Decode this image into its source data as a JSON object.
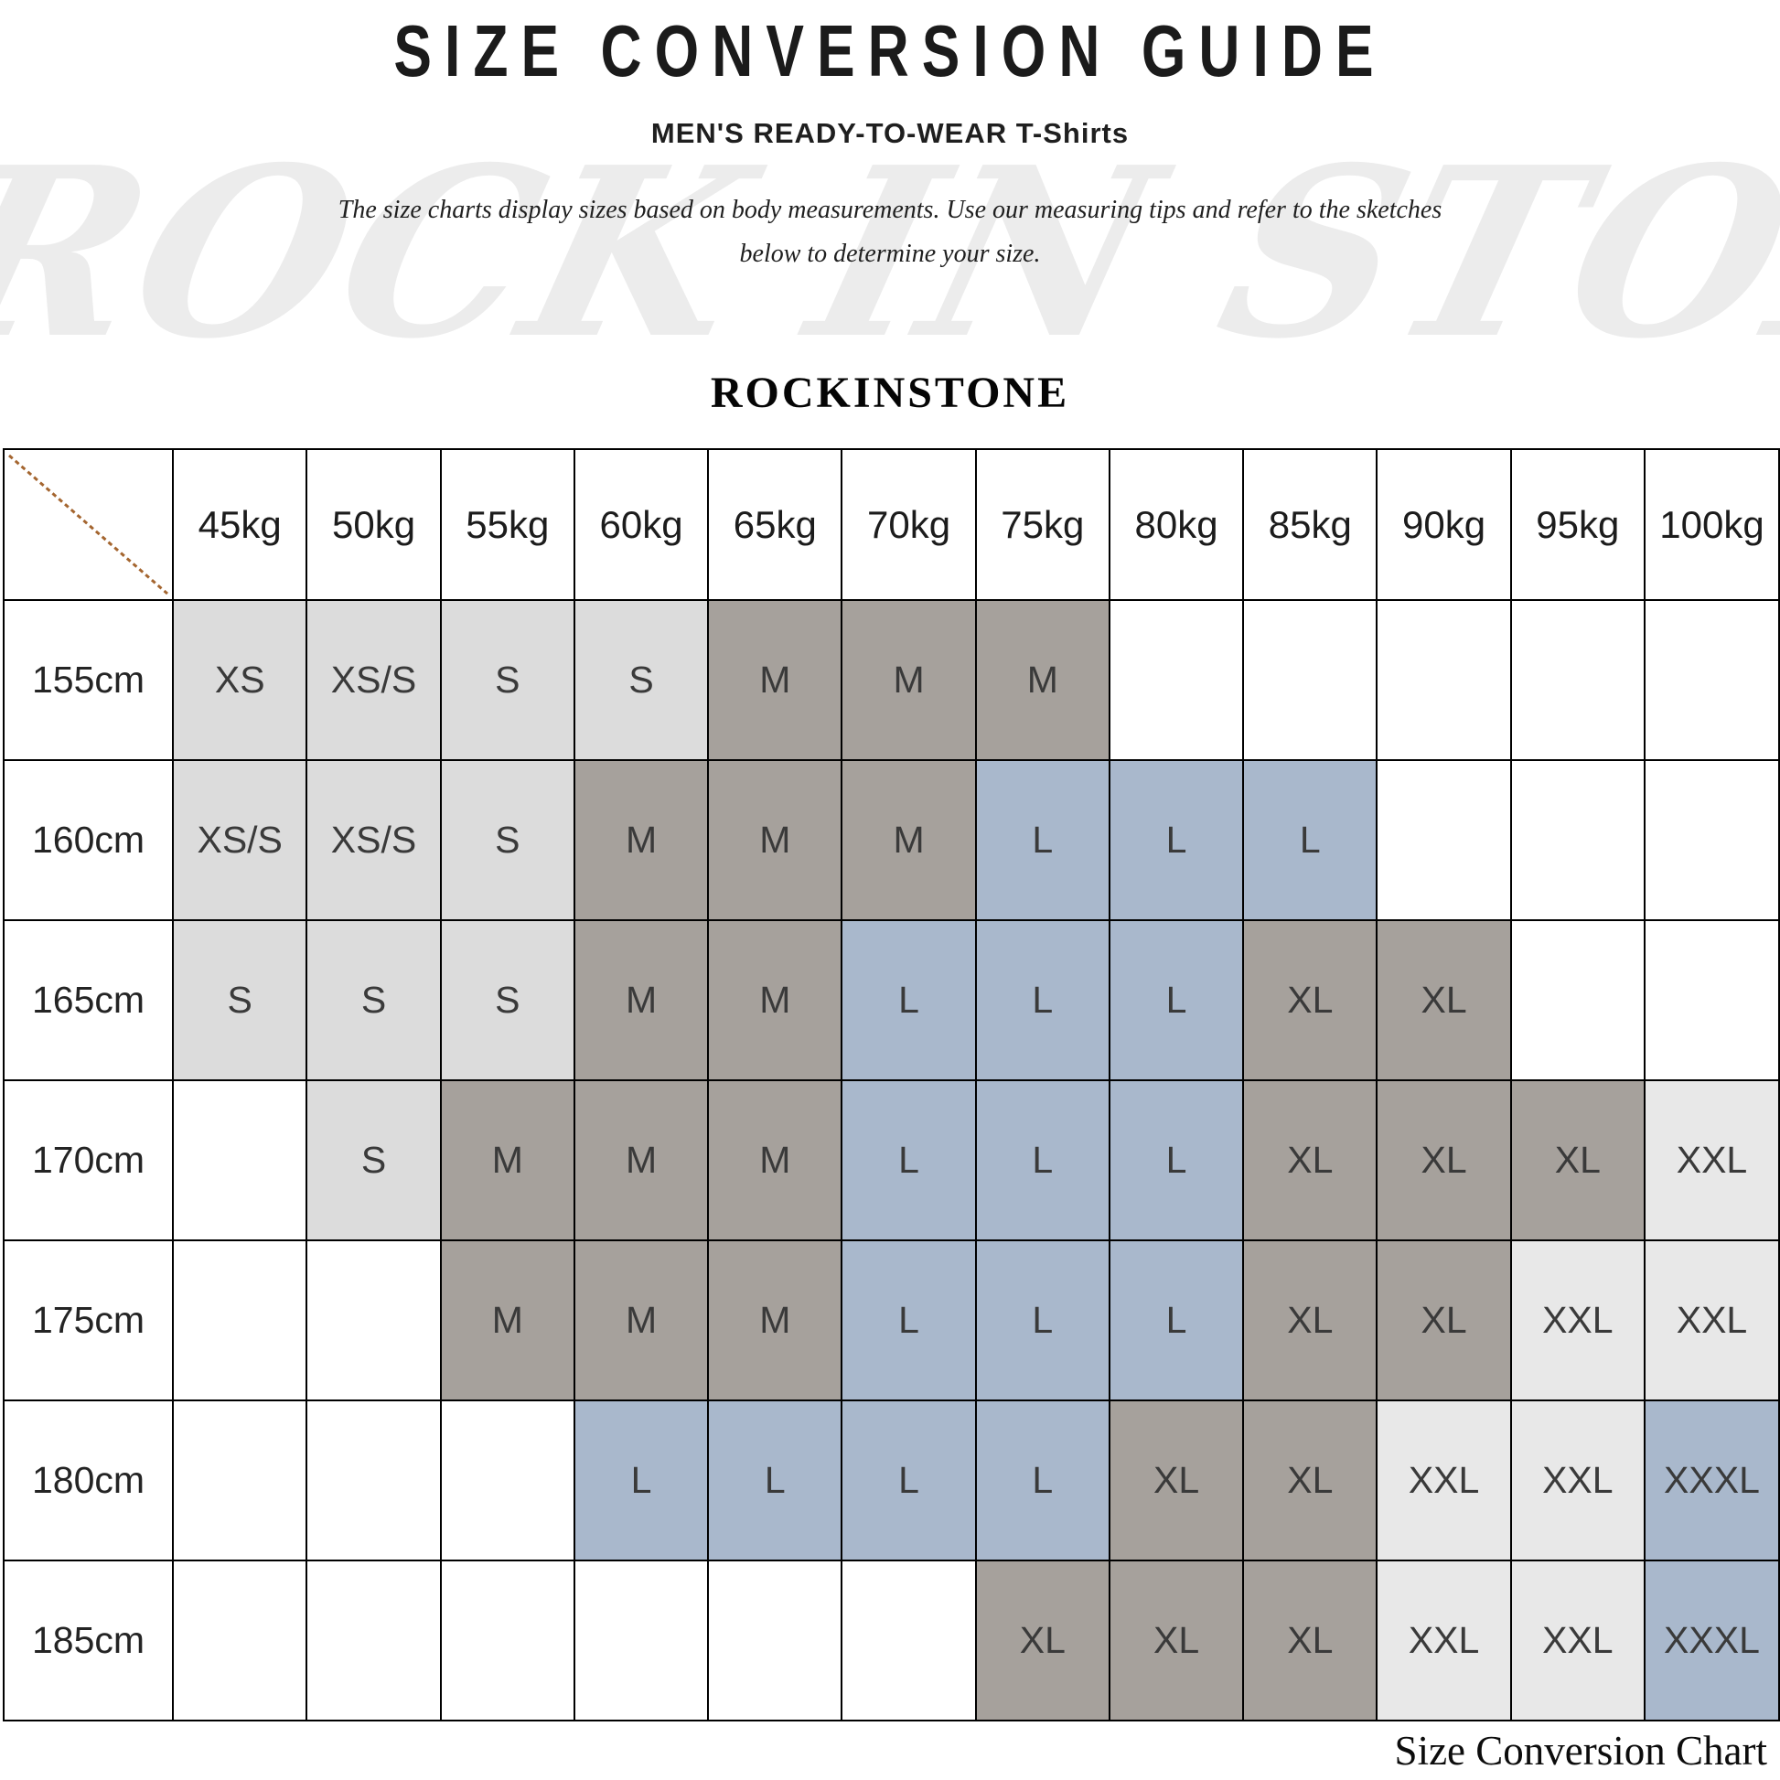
{
  "header": {
    "title": "SIZE CONVERSION GUIDE",
    "subtitle": "MEN'S READY-TO-WEAR T-Shirts",
    "description_line1": "The size charts display sizes based on body measurements.  Use our measuring tips and refer to the sketches",
    "description_line2": "below to determine your size.",
    "brand": "ROCKINSTONE",
    "watermark": "ROCK IN STONE"
  },
  "footer": {
    "caption": "Size Conversion Chart"
  },
  "colors": {
    "light_gray": "#dcdcdc",
    "taupe_gray": "#a6a19c",
    "blue_gray": "#a9b8cc",
    "pale_gray": "#e8e8e8",
    "white": "#ffffff",
    "diagonal_line": "#a4652f",
    "border": "#000000",
    "watermark_gray": "#ececec"
  },
  "chart_data": {
    "type": "table",
    "title": "SIZE CONVERSION GUIDE",
    "corner_label": "",
    "columns": [
      "45kg",
      "50kg",
      "55kg",
      "60kg",
      "65kg",
      "70kg",
      "75kg",
      "80kg",
      "85kg",
      "90kg",
      "95kg",
      "100kg"
    ],
    "rows": [
      {
        "label": "155cm",
        "cells": [
          {
            "v": "XS",
            "tone": "light_gray"
          },
          {
            "v": "XS/S",
            "tone": "light_gray"
          },
          {
            "v": "S",
            "tone": "light_gray"
          },
          {
            "v": "S",
            "tone": "light_gray"
          },
          {
            "v": "M",
            "tone": "taupe_gray"
          },
          {
            "v": "M",
            "tone": "taupe_gray"
          },
          {
            "v": "M",
            "tone": "taupe_gray"
          },
          {
            "v": "",
            "tone": ""
          },
          {
            "v": "",
            "tone": ""
          },
          {
            "v": "",
            "tone": ""
          },
          {
            "v": "",
            "tone": ""
          },
          {
            "v": "",
            "tone": ""
          }
        ]
      },
      {
        "label": "160cm",
        "cells": [
          {
            "v": "XS/S",
            "tone": "light_gray"
          },
          {
            "v": "XS/S",
            "tone": "light_gray"
          },
          {
            "v": "S",
            "tone": "light_gray"
          },
          {
            "v": "M",
            "tone": "taupe_gray"
          },
          {
            "v": "M",
            "tone": "taupe_gray"
          },
          {
            "v": "M",
            "tone": "taupe_gray"
          },
          {
            "v": "L",
            "tone": "blue_gray"
          },
          {
            "v": "L",
            "tone": "blue_gray"
          },
          {
            "v": "L",
            "tone": "blue_gray"
          },
          {
            "v": "",
            "tone": ""
          },
          {
            "v": "",
            "tone": ""
          },
          {
            "v": "",
            "tone": ""
          }
        ]
      },
      {
        "label": "165cm",
        "cells": [
          {
            "v": "S",
            "tone": "light_gray"
          },
          {
            "v": "S",
            "tone": "light_gray"
          },
          {
            "v": "S",
            "tone": "light_gray"
          },
          {
            "v": "M",
            "tone": "taupe_gray"
          },
          {
            "v": "M",
            "tone": "taupe_gray"
          },
          {
            "v": "L",
            "tone": "blue_gray"
          },
          {
            "v": "L",
            "tone": "blue_gray"
          },
          {
            "v": "L",
            "tone": "blue_gray"
          },
          {
            "v": "XL",
            "tone": "taupe_gray"
          },
          {
            "v": "XL",
            "tone": "taupe_gray"
          },
          {
            "v": "",
            "tone": ""
          },
          {
            "v": "",
            "tone": ""
          }
        ]
      },
      {
        "label": "170cm",
        "cells": [
          {
            "v": "",
            "tone": ""
          },
          {
            "v": "S",
            "tone": "light_gray"
          },
          {
            "v": "M",
            "tone": "taupe_gray"
          },
          {
            "v": "M",
            "tone": "taupe_gray"
          },
          {
            "v": "M",
            "tone": "taupe_gray"
          },
          {
            "v": "L",
            "tone": "blue_gray"
          },
          {
            "v": "L",
            "tone": "blue_gray"
          },
          {
            "v": "L",
            "tone": "blue_gray"
          },
          {
            "v": "XL",
            "tone": "taupe_gray"
          },
          {
            "v": "XL",
            "tone": "taupe_gray"
          },
          {
            "v": "XL",
            "tone": "taupe_gray"
          },
          {
            "v": "XXL",
            "tone": "pale_gray"
          }
        ]
      },
      {
        "label": "175cm",
        "cells": [
          {
            "v": "",
            "tone": ""
          },
          {
            "v": "",
            "tone": ""
          },
          {
            "v": "M",
            "tone": "taupe_gray"
          },
          {
            "v": "M",
            "tone": "taupe_gray"
          },
          {
            "v": "M",
            "tone": "taupe_gray"
          },
          {
            "v": "L",
            "tone": "blue_gray"
          },
          {
            "v": "L",
            "tone": "blue_gray"
          },
          {
            "v": "L",
            "tone": "blue_gray"
          },
          {
            "v": "XL",
            "tone": "taupe_gray"
          },
          {
            "v": "XL",
            "tone": "taupe_gray"
          },
          {
            "v": "XXL",
            "tone": "pale_gray"
          },
          {
            "v": "XXL",
            "tone": "pale_gray"
          }
        ]
      },
      {
        "label": "180cm",
        "cells": [
          {
            "v": "",
            "tone": ""
          },
          {
            "v": "",
            "tone": ""
          },
          {
            "v": "",
            "tone": ""
          },
          {
            "v": "L",
            "tone": "blue_gray"
          },
          {
            "v": "L",
            "tone": "blue_gray"
          },
          {
            "v": "L",
            "tone": "blue_gray"
          },
          {
            "v": "L",
            "tone": "blue_gray"
          },
          {
            "v": "XL",
            "tone": "taupe_gray"
          },
          {
            "v": "XL",
            "tone": "taupe_gray"
          },
          {
            "v": "XXL",
            "tone": "pale_gray"
          },
          {
            "v": "XXL",
            "tone": "pale_gray"
          },
          {
            "v": "XXXL",
            "tone": "blue_gray"
          }
        ]
      },
      {
        "label": "185cm",
        "cells": [
          {
            "v": "",
            "tone": ""
          },
          {
            "v": "",
            "tone": ""
          },
          {
            "v": "",
            "tone": ""
          },
          {
            "v": "",
            "tone": ""
          },
          {
            "v": "",
            "tone": ""
          },
          {
            "v": "",
            "tone": ""
          },
          {
            "v": "XL",
            "tone": "taupe_gray"
          },
          {
            "v": "XL",
            "tone": "taupe_gray"
          },
          {
            "v": "XL",
            "tone": "taupe_gray"
          },
          {
            "v": "XXL",
            "tone": "pale_gray"
          },
          {
            "v": "XXL",
            "tone": "pale_gray"
          },
          {
            "v": "XXXL",
            "tone": "blue_gray"
          }
        ]
      }
    ]
  }
}
